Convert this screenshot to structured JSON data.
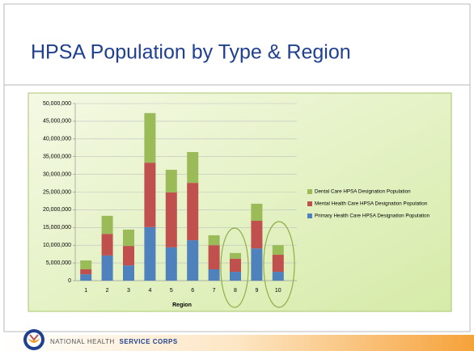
{
  "chart_data": {
    "type": "bar",
    "stacked": true,
    "title": "HPSA Population by Type & Region",
    "x_label": "Region",
    "categories": [
      "1",
      "2",
      "3",
      "4",
      "5",
      "6",
      "7",
      "8",
      "9",
      "10"
    ],
    "series": [
      {
        "name": "Primary Health Care HPSA Designation Population",
        "color": "#4f81bd",
        "values": [
          1800000,
          7100000,
          4300000,
          15100000,
          9400000,
          11400000,
          3200000,
          2500000,
          9100000,
          2500000
        ]
      },
      {
        "name": "Mental Health Care HPSA Designation Population",
        "color": "#c0504d",
        "values": [
          1400000,
          6100000,
          5500000,
          18200000,
          15500000,
          16200000,
          6800000,
          3700000,
          7800000,
          4800000
        ]
      },
      {
        "name": "Dental Care HPSA Designation Population",
        "color": "#9bbb59",
        "values": [
          2500000,
          5100000,
          4600000,
          14000000,
          6400000,
          8700000,
          2800000,
          1600000,
          4800000,
          2700000
        ]
      }
    ],
    "ylim": [
      0,
      50000000
    ],
    "yticks": [
      0,
      {
        "value": 5000000,
        "label": "5,000,000"
      },
      {
        "value": 10000000,
        "label": "10,000,000"
      },
      {
        "value": 15000000,
        "label": "15,000,000"
      },
      {
        "value": 20000000,
        "label": "20,000,000"
      },
      {
        "value": 25000000,
        "label": "25,000,000"
      },
      {
        "value": 30000000,
        "label": "30,000,000"
      },
      {
        "value": 35000000,
        "label": "35,000,000"
      },
      {
        "value": 40000000,
        "label": "40,000,000"
      },
      {
        "value": 45000000,
        "label": "45,000,000"
      },
      {
        "value": 50000000,
        "label": "50,000,000"
      }
    ],
    "grid": true,
    "legend": "right"
  },
  "footer": {
    "text_regular": "NATIONAL HEALTH",
    "text_bold": "SERVICE CORPS"
  }
}
